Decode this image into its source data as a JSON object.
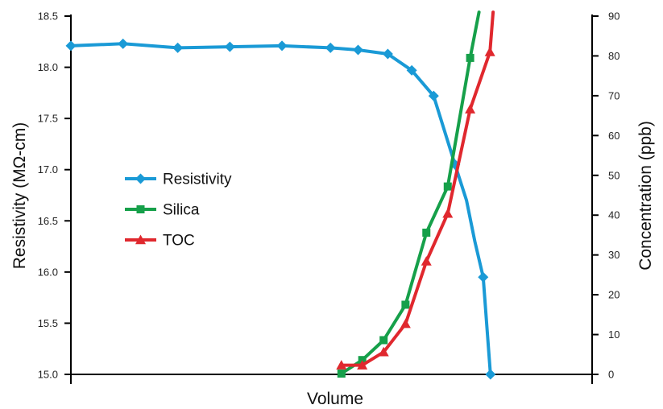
{
  "chart_data": {
    "type": "line",
    "title": "",
    "xlabel": "Volume",
    "ylabel_left": "Resistivity (MΩ-cm)",
    "ylabel_right": "Concentration (ppb)",
    "xlim": [
      0,
      100
    ],
    "ylim_left": [
      15.0,
      18.5
    ],
    "ylim_right": [
      0,
      90
    ],
    "yticks_left": [
      "15.0",
      "15.5",
      "16.0",
      "16.5",
      "17.0",
      "17.5",
      "18.0",
      "18.5"
    ],
    "yticks_right": [
      "0",
      "10",
      "20",
      "30",
      "40",
      "50",
      "60",
      "70",
      "80",
      "90"
    ],
    "legend_position": "center-left",
    "grid": false,
    "series": [
      {
        "name": "Resistivity",
        "axis": "left",
        "marker": "diamond",
        "color": "#1a9ad6",
        "x": [
          0,
          10,
          20.5,
          30.5,
          40.5,
          49.8,
          55.1,
          60.8,
          65.4,
          69.6,
          73.7,
          75.9,
          77.5,
          79.1,
          80.5
        ],
        "y": [
          18.21,
          18.23,
          18.19,
          18.2,
          18.21,
          18.19,
          18.17,
          18.13,
          17.97,
          17.72,
          17.05,
          16.7,
          16.3,
          15.95,
          15.0
        ],
        "marker_x": [
          0,
          10,
          20.5,
          30.5,
          40.5,
          49.8,
          55.1,
          60.8,
          65.4,
          69.6,
          73.7,
          79.1,
          80.5
        ],
        "marker_y": [
          18.21,
          18.23,
          18.19,
          18.2,
          18.21,
          18.19,
          18.17,
          18.13,
          17.97,
          17.72,
          17.05,
          15.95,
          15.0
        ]
      },
      {
        "name": "Silica",
        "axis": "right",
        "marker": "square",
        "color": "#16a04a",
        "x": [
          51.9,
          55.9,
          60.0,
          64.2,
          68.2,
          72.3,
          76.6,
          78.3
        ],
        "y": [
          0.2,
          3.6,
          8.6,
          17.5,
          35.6,
          47.2,
          79.5,
          91.0
        ],
        "marker_x": [
          51.9,
          55.9,
          60.0,
          64.2,
          68.2,
          72.3,
          76.6
        ],
        "marker_y": [
          0.2,
          3.6,
          8.6,
          17.5,
          35.6,
          47.2,
          79.5
        ]
      },
      {
        "name": "TOC",
        "axis": "right",
        "marker": "triangle",
        "color": "#e0282e",
        "x": [
          51.9,
          55.9,
          60.0,
          64.2,
          68.2,
          72.3,
          76.6,
          80.4,
          81.0
        ],
        "y": [
          2.3,
          2.3,
          5.6,
          12.7,
          28.4,
          40.4,
          66.6,
          81.0,
          91.0
        ],
        "marker_x": [
          51.9,
          55.9,
          60.0,
          64.2,
          68.2,
          72.3,
          76.6,
          80.4
        ],
        "marker_y": [
          2.3,
          2.3,
          5.6,
          12.7,
          28.4,
          40.4,
          66.6,
          81.0
        ]
      }
    ]
  }
}
